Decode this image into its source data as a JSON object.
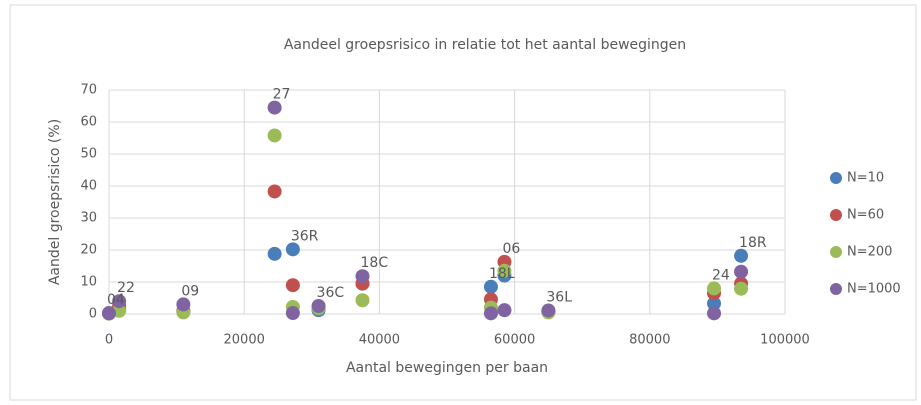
{
  "chart_data": {
    "type": "scatter",
    "title": "Aandeel groepsrisico in relatie tot het aantal bewegingen",
    "xlabel": "Aantal bewegingen per baan",
    "ylabel": "Aandel groepsrisico (%)",
    "x": [
      0,
      1500,
      11000,
      24500,
      27200,
      31000,
      37500,
      56500,
      58500,
      65000,
      89500,
      93500
    ],
    "point_labels": [
      "04",
      "22",
      "09",
      "27",
      "36R",
      "36C",
      "18C",
      "18L",
      "06",
      "36L",
      "24",
      "18R"
    ],
    "series": [
      {
        "name": "N=10",
        "color": "#4a7ebb",
        "values": [
          0.3,
          1.5,
          0.8,
          18.8,
          20.2,
          1.2,
          9.5,
          8.5,
          12,
          0.7,
          3.3,
          18.2
        ]
      },
      {
        "name": "N=60",
        "color": "#c0504d",
        "values": [
          0.2,
          2.5,
          1,
          38.3,
          9,
          2,
          9.5,
          4.6,
          16.3,
          0.8,
          6.5,
          9.5
        ]
      },
      {
        "name": "N=200",
        "color": "#9bbb59",
        "values": [
          0.1,
          1,
          0.5,
          55.8,
          2.2,
          1.8,
          4.3,
          2,
          13.5,
          0.5,
          8,
          7.9
        ]
      },
      {
        "name": "N=1000",
        "color": "#8064a2",
        "values": [
          0.2,
          4,
          3,
          64.5,
          0.3,
          2.5,
          11.8,
          0.2,
          1.2,
          1.1,
          0.2,
          13.2
        ]
      }
    ],
    "xlim": [
      0,
      100000
    ],
    "xticks": [
      0,
      20000,
      40000,
      60000,
      80000,
      100000
    ],
    "ylim": [
      0,
      70
    ],
    "yticks": [
      0,
      10,
      20,
      30,
      40,
      50,
      60,
      70
    ],
    "grid": true,
    "legend": "right"
  }
}
